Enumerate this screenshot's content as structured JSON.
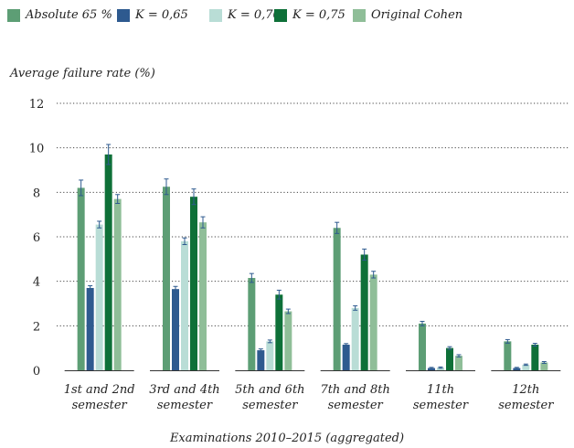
{
  "chart_data": {
    "type": "bar",
    "ylabel": "Average failure rate (%)",
    "xlabel": "Examinations 2010–2015 (aggregated)",
    "ylim": [
      0,
      12
    ],
    "yticks": [
      0,
      2,
      4,
      6,
      8,
      10,
      12
    ],
    "grid": "dotted horizontal",
    "legend_position": "top",
    "categories": [
      [
        "1st and 2nd",
        "semester"
      ],
      [
        "3rd and 4th",
        "semester"
      ],
      [
        "5th and 6th",
        "semester"
      ],
      [
        "7th and 8th",
        "semester"
      ],
      [
        "11th",
        "semester"
      ],
      [
        "12th",
        "semester"
      ]
    ],
    "series": [
      {
        "name": "Absolute 65 %",
        "color": "#5d9e75",
        "values": [
          8.2,
          8.25,
          4.15,
          6.4,
          2.1,
          1.3
        ],
        "errors": [
          0.35,
          0.35,
          0.2,
          0.25,
          0.1,
          0.08
        ]
      },
      {
        "name": "K = 0,65",
        "color": "#2e5a8f",
        "values": [
          3.7,
          3.65,
          0.9,
          1.15,
          0.1,
          0.1
        ],
        "errors": [
          0.1,
          0.12,
          0.06,
          0.05,
          0.03,
          0.03
        ]
      },
      {
        "name": "K = 0,70",
        "color": "#b9ddd6",
        "values": [
          6.55,
          5.8,
          1.3,
          2.8,
          0.12,
          0.25
        ],
        "errors": [
          0.15,
          0.15,
          0.06,
          0.1,
          0.03,
          0.03
        ]
      },
      {
        "name": "K = 0,75",
        "color": "#0e7038",
        "values": [
          9.7,
          7.8,
          3.4,
          5.2,
          1.0,
          1.15
        ],
        "errors": [
          0.45,
          0.35,
          0.2,
          0.25,
          0.06,
          0.06
        ]
      },
      {
        "name": "Original Cohen",
        "color": "#8fbe98",
        "values": [
          7.7,
          6.65,
          2.65,
          4.3,
          0.65,
          0.35
        ],
        "errors": [
          0.2,
          0.25,
          0.1,
          0.15,
          0.05,
          0.04
        ]
      }
    ]
  }
}
